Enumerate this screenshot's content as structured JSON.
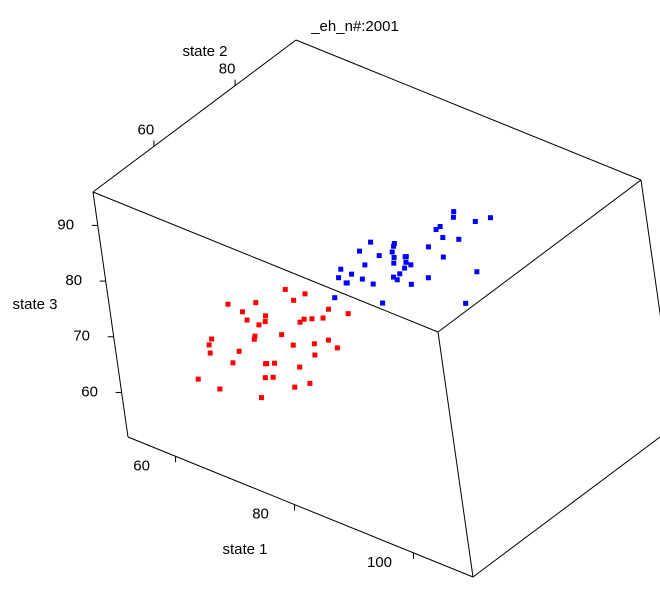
{
  "chart_data": {
    "type": "scatter3d",
    "title": "_eh_n#:2001",
    "x_label": "state 1",
    "y_label": "state 2",
    "z_label": "state 3",
    "xlim": [
      52,
      110
    ],
    "ylim": [
      45,
      95
    ],
    "zlim": [
      52,
      96
    ],
    "xticks": [
      60,
      80,
      100
    ],
    "yticks": [
      60,
      80
    ],
    "zticks": [
      60,
      70,
      80,
      90
    ],
    "series": [
      {
        "color": "#ff0000",
        "x": [
          70,
          66,
          72,
          68,
          75,
          64,
          71,
          69,
          73,
          67,
          62,
          74,
          70,
          65,
          76,
          68,
          72,
          63,
          69,
          71,
          66,
          73,
          67,
          70,
          78,
          64,
          71,
          69,
          74,
          66,
          60,
          72,
          68,
          75,
          70,
          65,
          73,
          67,
          71,
          69
        ],
        "y": [
          60,
          55,
          63,
          58,
          65,
          52,
          61,
          57,
          66,
          59,
          50,
          62,
          54,
          60,
          68,
          56,
          64,
          53,
          58,
          61,
          57,
          63,
          59,
          55,
          62,
          51,
          60,
          65,
          58,
          54,
          56,
          62,
          60,
          64,
          57,
          59,
          61,
          52,
          66,
          58
        ],
        "z": [
          70,
          68,
          72,
          65,
          74,
          62,
          78,
          66,
          71,
          75,
          64,
          69,
          73,
          67,
          72,
          60,
          76,
          70,
          63,
          68,
          74,
          66,
          71,
          65,
          70,
          69,
          61,
          73,
          67,
          77,
          66,
          72,
          64,
          69,
          75,
          71,
          62,
          68,
          70,
          73
        ]
      },
      {
        "color": "#0000ff",
        "x": [
          80,
          76,
          84,
          78,
          88,
          74,
          82,
          79,
          86,
          77,
          90,
          81,
          75,
          85,
          79,
          83,
          77,
          87,
          80,
          92,
          76,
          84,
          78,
          82,
          89,
          74,
          81,
          86,
          79,
          83,
          77,
          85,
          80,
          88,
          75,
          82,
          78,
          84,
          80,
          91
        ],
        "y": [
          75,
          70,
          78,
          72,
          80,
          68,
          76,
          73,
          82,
          71,
          77,
          74,
          69,
          79,
          76,
          72,
          74,
          81,
          75,
          78,
          67,
          77,
          70,
          75,
          83,
          71,
          73,
          79,
          76,
          74,
          72,
          80,
          77,
          76,
          70,
          75,
          78,
          73,
          71,
          84
        ],
        "z": [
          80,
          78,
          82,
          76,
          84,
          74,
          79,
          81,
          86,
          77,
          75,
          83,
          79,
          85,
          78,
          80,
          82,
          88,
          76,
          81,
          79,
          77,
          83,
          80,
          86,
          75,
          78,
          84,
          80,
          82,
          79,
          85,
          77,
          83,
          76,
          81,
          80,
          78,
          74,
          87
        ]
      }
    ]
  }
}
